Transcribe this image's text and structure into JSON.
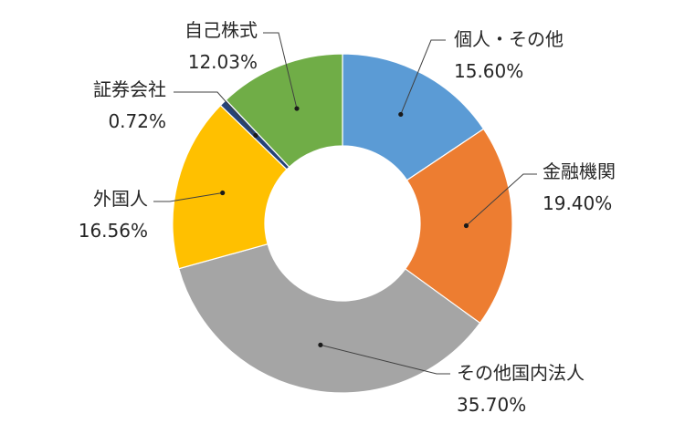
{
  "chart_data": {
    "type": "pie",
    "style": "donut",
    "title": "",
    "legend": "none",
    "categories": [
      "個人・その他",
      "金融機関",
      "その他国内法人",
      "外国人",
      "証券会社",
      "自己株式"
    ],
    "values": [
      15.6,
      19.4,
      35.7,
      16.56,
      0.72,
      12.03
    ],
    "value_labels": [
      "15.60%",
      "19.40%",
      "35.70%",
      "16.56%",
      "0.72%",
      "12.03%"
    ],
    "colors": [
      "#5b9bd5",
      "#ed7d31",
      "#a5a5a5",
      "#ffc000",
      "#264478",
      "#70ad47"
    ]
  }
}
